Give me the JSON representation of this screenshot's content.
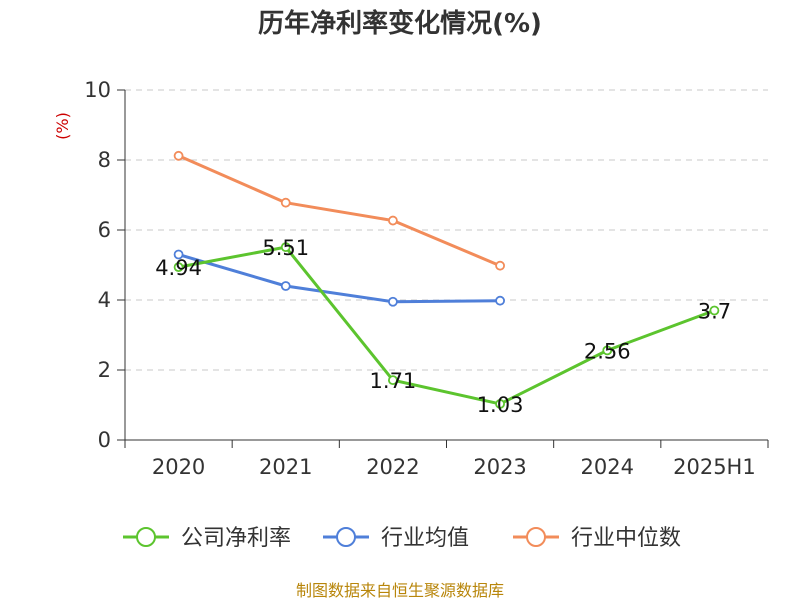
{
  "chart_data": {
    "type": "line",
    "title": "历年净利率变化情况(%)",
    "ylabel": "(%)",
    "xlabel": "",
    "categories": [
      "2020",
      "2021",
      "2022",
      "2023",
      "2024",
      "2025H1"
    ],
    "ylim": [
      0,
      10
    ],
    "yticks": [
      0,
      2,
      4,
      6,
      8,
      10
    ],
    "grid": true,
    "legend_position": "bottom",
    "series": [
      {
        "name": "公司净利率",
        "color": "#5cc42e",
        "values": [
          4.94,
          5.51,
          1.71,
          1.03,
          2.56,
          3.7
        ],
        "labels": [
          "4.94",
          "5.51",
          "1.71",
          "1.03",
          "2.56",
          "3.7"
        ]
      },
      {
        "name": "行业均值",
        "color": "#4f7fd9",
        "values": [
          5.3,
          4.4,
          3.95,
          3.98,
          null,
          null
        ]
      },
      {
        "name": "行业中位数",
        "color": "#f28c5a",
        "values": [
          8.12,
          6.78,
          6.27,
          4.98,
          null,
          null
        ]
      }
    ],
    "source": "制图数据来自恒生聚源数据库"
  }
}
